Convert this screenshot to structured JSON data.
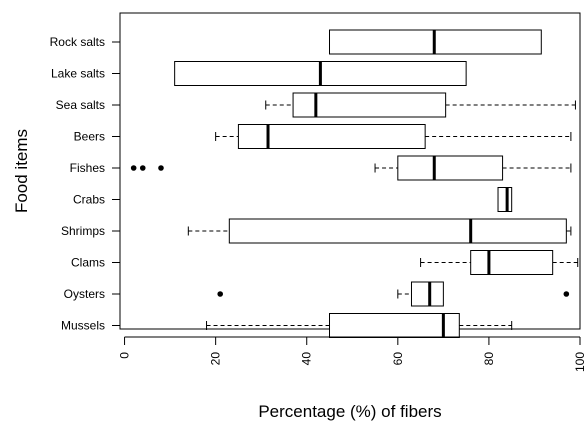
{
  "chart_data": {
    "type": "boxplot",
    "orientation": "horizontal",
    "xlabel": "Percentage (%) of fibers",
    "ylabel": "Food items",
    "xlim": [
      -1,
      100
    ],
    "xticks": [
      0,
      20,
      40,
      60,
      80,
      100
    ],
    "tick_labels": [
      "0",
      "20",
      "40",
      "60",
      "80",
      "100"
    ],
    "grid": false,
    "series": [
      {
        "category": "Rock salts",
        "whisker_low": 45,
        "q1": 45,
        "median": 68,
        "q3": 91.5,
        "whisker_high": 91.5,
        "outliers": []
      },
      {
        "category": "Lake salts",
        "whisker_low": 11,
        "q1": 11,
        "median": 43,
        "q3": 75,
        "whisker_high": 75,
        "outliers": []
      },
      {
        "category": "Sea salts",
        "whisker_low": 31,
        "q1": 37,
        "median": 42,
        "q3": 70.5,
        "whisker_high": 99,
        "outliers": []
      },
      {
        "category": "Beers",
        "whisker_low": 20,
        "q1": 25,
        "median": 31.5,
        "q3": 66,
        "whisker_high": 98,
        "outliers": []
      },
      {
        "category": "Fishes",
        "whisker_low": 55,
        "q1": 60,
        "median": 68,
        "q3": 83,
        "whisker_high": 98,
        "outliers": [
          2,
          4,
          8
        ]
      },
      {
        "category": "Crabs",
        "whisker_low": 82,
        "q1": 82,
        "median": 84,
        "q3": 85,
        "whisker_high": 85,
        "outliers": []
      },
      {
        "category": "Shrimps",
        "whisker_low": 14,
        "q1": 23,
        "median": 76,
        "q3": 97,
        "whisker_high": 98,
        "outliers": []
      },
      {
        "category": "Clams",
        "whisker_low": 65,
        "q1": 76,
        "median": 80,
        "q3": 94,
        "whisker_high": 99.5,
        "outliers": []
      },
      {
        "category": "Oysters",
        "whisker_low": 60,
        "q1": 63,
        "median": 67,
        "q3": 70,
        "whisker_high": 70,
        "outliers": [
          21,
          97
        ]
      },
      {
        "category": "Mussels",
        "whisker_low": 18,
        "q1": 45,
        "median": 70,
        "q3": 73.5,
        "whisker_high": 85,
        "outliers": []
      }
    ]
  }
}
